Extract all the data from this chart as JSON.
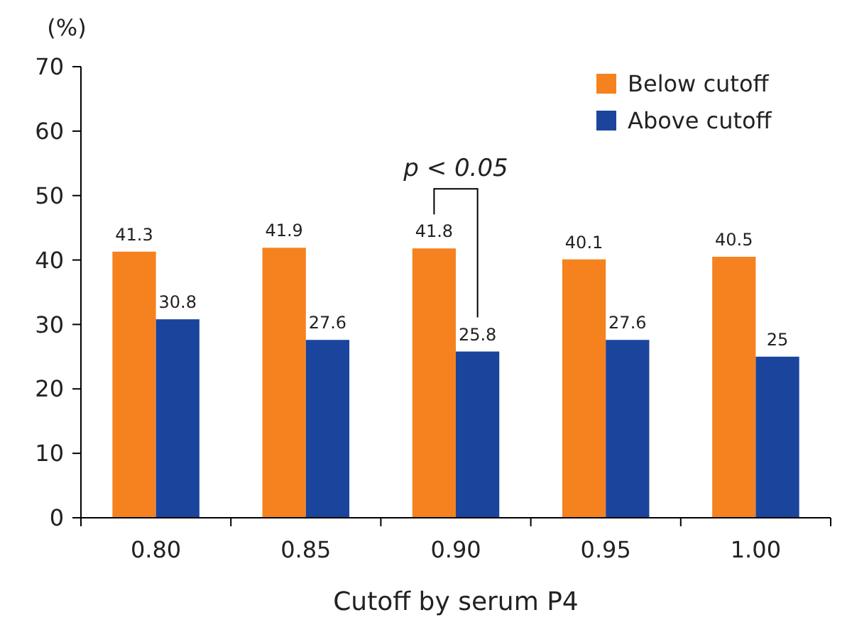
{
  "chart_data": {
    "type": "bar",
    "ylabel": "(%)",
    "xlabel": "Cutoff by serum P4",
    "categories": [
      "0.80",
      "0.85",
      "0.90",
      "0.95",
      "1.00"
    ],
    "series": [
      {
        "name": "Below cutoff",
        "color": "#f5821f",
        "values": [
          41.3,
          41.9,
          41.8,
          40.1,
          40.5
        ]
      },
      {
        "name": "Above cutoff",
        "color": "#1b449c",
        "values": [
          30.8,
          27.6,
          25.8,
          27.6,
          25
        ]
      }
    ],
    "ylim": [
      0,
      70
    ],
    "yticks": [
      0,
      10,
      20,
      30,
      40,
      50,
      60,
      70
    ],
    "data_labels": true,
    "grid": false,
    "legend": "top right",
    "annotations": [
      "p < 0.05"
    ]
  }
}
